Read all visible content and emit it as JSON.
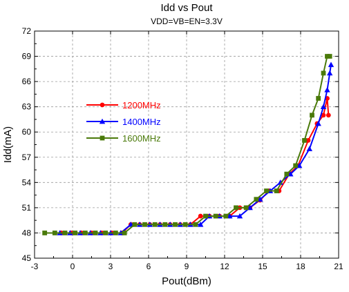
{
  "chart_data": {
    "type": "line",
    "title": "Idd vs Pout",
    "subtitle": "VDD=VB=EN=3.3V",
    "xlabel": "Pout(dBm)",
    "ylabel": "Idd(mA)",
    "xlim": [
      -3,
      21
    ],
    "ylim": [
      45,
      72
    ],
    "xticks": [
      -3,
      0,
      3,
      6,
      9,
      12,
      15,
      18,
      21
    ],
    "yticks": [
      45,
      48,
      51,
      54,
      57,
      60,
      63,
      66,
      69,
      72
    ],
    "grid": true,
    "legend_position": "left-middle",
    "series": [
      {
        "name": "1200MHz",
        "color": "#ff0000",
        "marker": "circle",
        "x": [
          -0.9,
          -0.1,
          0.7,
          1.5,
          2.3,
          3.1,
          3.9,
          4.6,
          5.3,
          6.1,
          6.9,
          7.7,
          8.5,
          9.3,
          10.1,
          10.8,
          11.6,
          12.4,
          13.2,
          14.0,
          14.8,
          15.5,
          16.3,
          17.1,
          17.8,
          18.6,
          19.3,
          19.8,
          20.1,
          20.2
        ],
        "y": [
          48,
          48,
          48,
          48,
          48,
          48,
          48,
          49,
          49,
          49,
          49,
          49,
          49,
          49,
          50,
          50,
          50,
          50,
          51,
          51,
          51.9,
          53,
          53,
          55,
          56,
          59,
          61,
          62,
          64,
          62
        ]
      },
      {
        "name": "1400MHz",
        "color": "#0000ff",
        "marker": "triangle",
        "x": [
          -1.0,
          -0.2,
          0.6,
          1.4,
          2.2,
          3.0,
          3.8,
          4.6,
          5.3,
          6.1,
          6.9,
          7.7,
          8.5,
          9.3,
          10.1,
          10.8,
          11.6,
          12.4,
          13.2,
          14.0,
          14.8,
          15.6,
          16.4,
          17.2,
          17.9,
          18.7,
          19.4,
          19.8,
          20.1,
          20.3,
          20.4
        ],
        "y": [
          48,
          48,
          48,
          48,
          48,
          48,
          48,
          49,
          49,
          49,
          49,
          49,
          49,
          49,
          49,
          50,
          50,
          50,
          50,
          51,
          52,
          53,
          54,
          55,
          56,
          58,
          61,
          63,
          65,
          67,
          68
        ]
      },
      {
        "name": "1600MHz",
        "color": "#4a7a0a",
        "marker": "square",
        "x": [
          -2.2,
          -1.4,
          -0.6,
          0.2,
          1.0,
          1.8,
          2.6,
          3.4,
          4.1,
          4.9,
          5.7,
          6.5,
          7.3,
          8.1,
          8.9,
          9.7,
          10.5,
          11.3,
          12.1,
          12.9,
          13.7,
          14.5,
          15.3,
          16.1,
          16.9,
          17.6,
          18.3,
          18.9,
          19.4,
          19.8,
          20.1,
          20.3
        ],
        "y": [
          48,
          48,
          48,
          48,
          48,
          48,
          48,
          48,
          48,
          49,
          49,
          49,
          49,
          49,
          49,
          49,
          50,
          50,
          50,
          51,
          51,
          52,
          53,
          53,
          55,
          56,
          59,
          62,
          64,
          67,
          69,
          69
        ]
      }
    ]
  }
}
